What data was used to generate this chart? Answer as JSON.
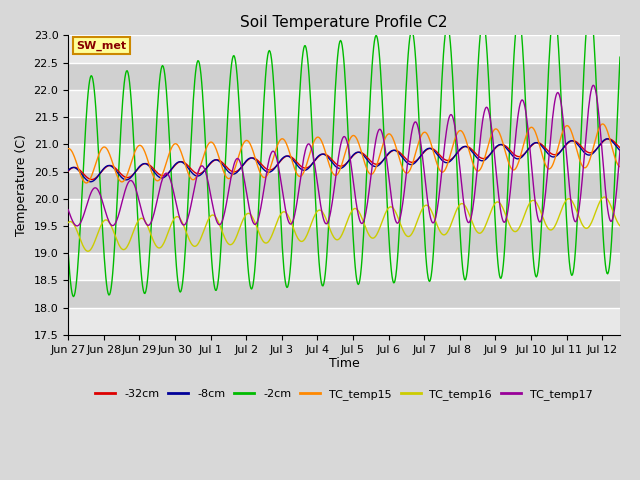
{
  "title": "Soil Temperature Profile C2",
  "xlabel": "Time",
  "ylabel": "Temperature (C)",
  "ylim": [
    17.5,
    23.0
  ],
  "yticks": [
    17.5,
    18.0,
    18.5,
    19.0,
    19.5,
    20.0,
    20.5,
    21.0,
    21.5,
    22.0,
    22.5,
    23.0
  ],
  "xtick_labels": [
    "Jun 27",
    "Jun 28",
    "Jun 29",
    "Jun 30",
    "Jul 1",
    "Jul 2",
    "Jul 3",
    "Jul 4",
    "Jul 5",
    "Jul 6",
    "Jul 7",
    "Jul 8",
    "Jul 9",
    "Jul 10",
    "Jul 11",
    "Jul 12"
  ],
  "figure_facecolor": "#d8d8d8",
  "plot_bg_light": "#e8e8e8",
  "plot_bg_dark": "#d0d0d0",
  "grid_color": "#ffffff",
  "annotation_text": "SW_met",
  "annotation_bg": "#ffff99",
  "annotation_border": "#cc8800",
  "annotation_text_color": "#880000",
  "line_colors": {
    "neg32cm": "#dd0000",
    "neg8cm": "#000099",
    "neg2cm": "#00bb00",
    "TC_temp15": "#ff8800",
    "TC_temp16": "#cccc00",
    "TC_temp17": "#990099"
  },
  "legend_labels": [
    "-32cm",
    "-8cm",
    "-2cm",
    "TC_temp15",
    "TC_temp16",
    "TC_temp17"
  ],
  "n_points": 720,
  "duration_days": 15.5,
  "period_hours": 24
}
